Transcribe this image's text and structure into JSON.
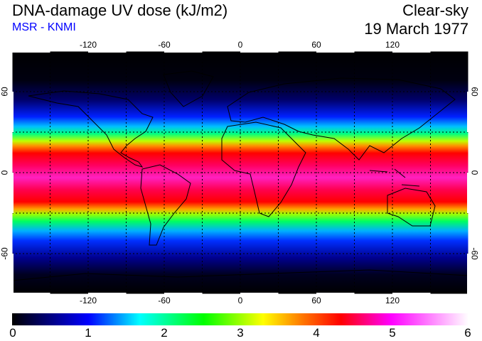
{
  "header": {
    "title": "DNA-damage UV dose (kJ/m2)",
    "subtitle": "MSR - KNMI",
    "sky_condition": "Clear-sky",
    "date": "19 March 1977"
  },
  "map": {
    "lon_labels": [
      "-120",
      "-60",
      "0",
      "60",
      "120"
    ],
    "lat_labels": [
      "60",
      "0",
      "-60"
    ],
    "projection": "equirectangular",
    "grid_spacing_deg": 30
  },
  "colorbar": {
    "labels": [
      "0",
      "1",
      "2",
      "3",
      "4",
      "5",
      "6"
    ],
    "min": 0,
    "max": 6,
    "colors": [
      "#000000",
      "#0000ff",
      "#00ffff",
      "#00ff00",
      "#ffff00",
      "#ff0000",
      "#ff00ff",
      "#ffffff"
    ]
  }
}
